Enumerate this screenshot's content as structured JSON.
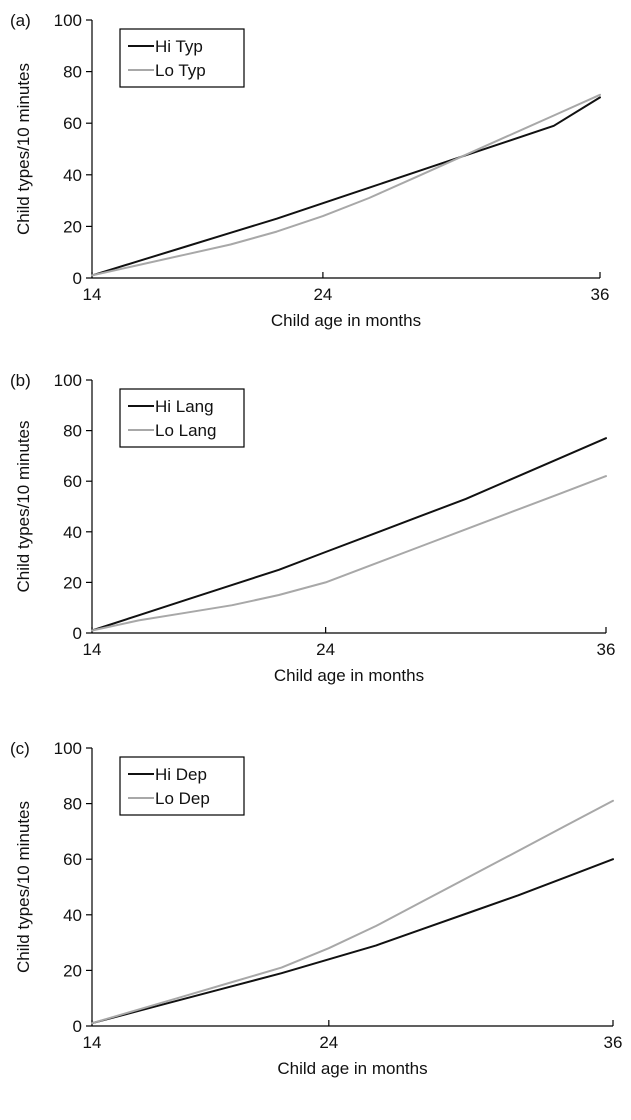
{
  "chart_data": [
    {
      "type": "line",
      "panel_label": "(a)",
      "xlabel": "Child age in months",
      "ylabel": "Child types/10 minutes",
      "xlim": [
        14,
        36
      ],
      "ylim": [
        0,
        100
      ],
      "x_ticks": [
        14,
        24,
        36
      ],
      "y_ticks": [
        0,
        20,
        40,
        60,
        80,
        100
      ],
      "grid": false,
      "legend_position": "top-left",
      "series": [
        {
          "name": "Hi Typ",
          "color": "#111111",
          "x": [
            14,
            16,
            18,
            20,
            22,
            24,
            26,
            28,
            30,
            32,
            34,
            36
          ],
          "y": [
            1,
            6.5,
            12,
            17.5,
            23,
            29,
            35,
            41,
            47,
            53,
            59,
            70
          ]
        },
        {
          "name": "Lo Typ",
          "color": "#a8a8a8",
          "x": [
            14,
            16,
            18,
            20,
            22,
            24,
            26,
            28,
            30,
            32,
            34,
            36
          ],
          "y": [
            1,
            5,
            9,
            13,
            18,
            24,
            31,
            39,
            47,
            55,
            63,
            71
          ]
        }
      ]
    },
    {
      "type": "line",
      "panel_label": "(b)",
      "xlabel": "Child age in months",
      "ylabel": "Child types/10 minutes",
      "xlim": [
        14,
        36
      ],
      "ylim": [
        0,
        100
      ],
      "x_ticks": [
        14,
        24,
        36
      ],
      "y_ticks": [
        0,
        20,
        40,
        60,
        80,
        100
      ],
      "grid": false,
      "legend_position": "top-left",
      "series": [
        {
          "name": "Hi Lang",
          "color": "#111111",
          "x": [
            14,
            16,
            18,
            20,
            22,
            24,
            26,
            28,
            30,
            32,
            34,
            36
          ],
          "y": [
            1,
            7,
            13,
            19,
            25,
            32,
            39,
            46,
            53,
            61,
            69,
            77
          ]
        },
        {
          "name": "Lo Lang",
          "color": "#a8a8a8",
          "x": [
            14,
            16,
            18,
            20,
            22,
            24,
            26,
            28,
            30,
            32,
            34,
            36
          ],
          "y": [
            1,
            5,
            8,
            11,
            15,
            20,
            27,
            34,
            41,
            48,
            55,
            62
          ]
        }
      ]
    },
    {
      "type": "line",
      "panel_label": "(c)",
      "xlabel": "Child age in months",
      "ylabel": "Child types/10 minutes",
      "xlim": [
        14,
        36
      ],
      "ylim": [
        0,
        100
      ],
      "x_ticks": [
        14,
        24,
        36
      ],
      "y_ticks": [
        0,
        20,
        40,
        60,
        80,
        100
      ],
      "grid": false,
      "legend_position": "top-left",
      "series": [
        {
          "name": "Hi Dep",
          "color": "#111111",
          "x": [
            14,
            16,
            18,
            20,
            22,
            24,
            26,
            28,
            30,
            32,
            34,
            36
          ],
          "y": [
            1,
            5.5,
            10,
            14.5,
            19,
            24,
            29,
            35,
            41,
            47,
            53.5,
            60
          ]
        },
        {
          "name": "Lo Dep",
          "color": "#a8a8a8",
          "x": [
            14,
            16,
            18,
            20,
            22,
            24,
            26,
            28,
            30,
            32,
            34,
            36
          ],
          "y": [
            1,
            6,
            11,
            16,
            21,
            28,
            36,
            45,
            54,
            63,
            72,
            81
          ]
        }
      ]
    }
  ]
}
